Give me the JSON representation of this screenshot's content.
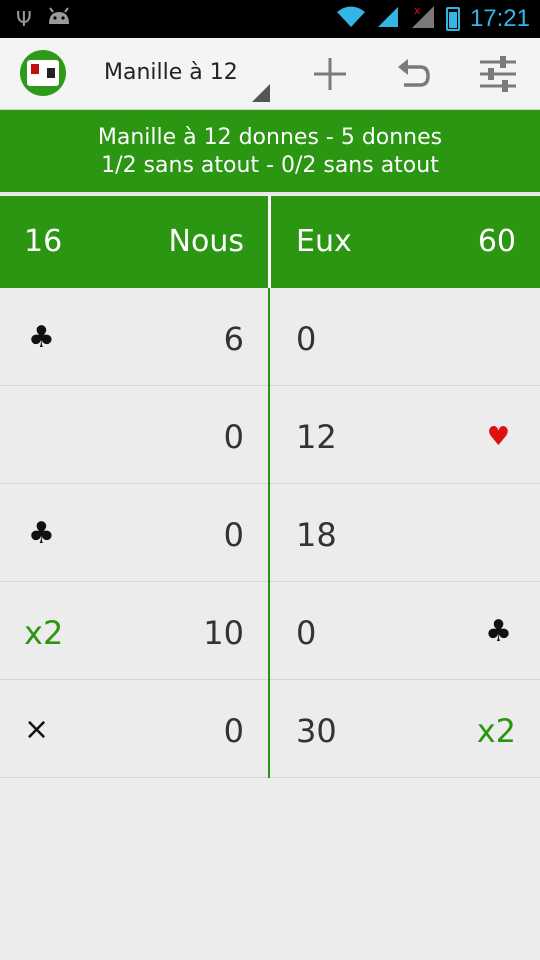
{
  "statusbar": {
    "time": "17:21"
  },
  "actionbar": {
    "title": "Manille à 12"
  },
  "banner": {
    "line1": "Manille à 12 donnes - 5 donnes",
    "line2": "1/2 sans atout - 0/2 sans atout"
  },
  "teams": {
    "left_score": "16",
    "left_name": "Nous",
    "right_name": "Eux",
    "right_score": "60"
  },
  "rows": [
    {
      "left_mark": "♣",
      "left": "6",
      "right": "0",
      "right_mark": ""
    },
    {
      "left_mark": "",
      "left": "0",
      "right": "12",
      "right_mark": "♥"
    },
    {
      "left_mark": "♣",
      "left": "0",
      "right": "18",
      "right_mark": ""
    },
    {
      "left_mark": "x2",
      "left": "10",
      "right": "0",
      "right_mark": "♣"
    },
    {
      "left_mark": "×",
      "left": "0",
      "right": "30",
      "right_mark": "x2"
    }
  ],
  "colors": {
    "green": "#2a9611",
    "red": "#e01010",
    "status_blue": "#33b5e5"
  }
}
